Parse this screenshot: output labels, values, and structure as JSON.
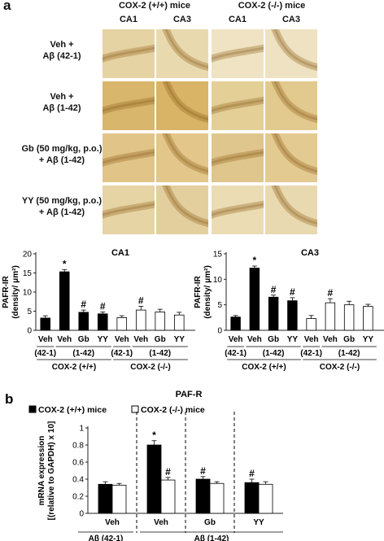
{
  "panel_a": {
    "letter": "a",
    "groups": [
      "COX-2 (+/+) mice",
      "COX-2 (-/-) mice"
    ],
    "regions": [
      "CA1",
      "CA3",
      "CA1",
      "CA3"
    ],
    "rows": [
      "Veh +\nAβ (42-1)",
      "Veh +\nAβ (1-42)",
      "Gb (50 mg/kg, p.o.)\n+ Aβ (1-42)",
      "YY (50 mg/kg, p.o.)\n+ Aβ (1-42)"
    ],
    "tile_colors": [
      [
        "#e6d3a3",
        "#e9d9ae",
        "#efe3c3",
        "#eee2c2"
      ],
      [
        "#d8b66c",
        "#d9b467",
        "#e4cf97",
        "#e2c98e"
      ],
      [
        "#e1c488",
        "#e2c68a",
        "#dfc68d",
        "#e3ca91"
      ],
      [
        "#e6d4a5",
        "#e3cf9e",
        "#ebdcb4",
        "#e9d9b0"
      ]
    ]
  },
  "chart_data": [
    {
      "type": "bar",
      "title": "CA1",
      "ylabel": "PAFR-IR\n(density/ μm²)",
      "ylim": [
        0,
        20
      ],
      "yticks": [
        0,
        5,
        10,
        15,
        20
      ],
      "categories": [
        "Veh",
        "Veh",
        "Gb",
        "YY",
        "Veh",
        "Veh",
        "Gb",
        "YY"
      ],
      "values": [
        3.2,
        15.3,
        4.7,
        4.3,
        3.3,
        5.3,
        4.8,
        4.0
      ],
      "errors": [
        0.6,
        0.6,
        0.6,
        0.5,
        0.5,
        1.0,
        0.7,
        0.7
      ],
      "filled": [
        true,
        true,
        true,
        true,
        false,
        false,
        false,
        false
      ],
      "marks": [
        "",
        "*",
        "#",
        "#",
        "",
        "#",
        "",
        ""
      ],
      "subgroups": [
        "(42-1)",
        "(1-42)",
        "(42-1)",
        "(1-42)"
      ],
      "groups": [
        "COX-2 (+/+)",
        "COX-2 (-/-)"
      ]
    },
    {
      "type": "bar",
      "title": "CA3",
      "ylabel": "PAFR-IR\n(density/ μm²)",
      "ylim": [
        0,
        15
      ],
      "yticks": [
        0,
        5,
        10,
        15
      ],
      "categories": [
        "Veh",
        "Veh",
        "Gb",
        "YY",
        "Veh",
        "Veh",
        "Gb",
        "YY"
      ],
      "values": [
        2.6,
        12.2,
        6.5,
        5.8,
        2.3,
        5.4,
        5.0,
        4.7
      ],
      "errors": [
        0.3,
        0.4,
        0.4,
        0.6,
        0.6,
        0.8,
        0.7,
        0.4
      ],
      "filled": [
        true,
        true,
        true,
        true,
        false,
        false,
        false,
        false
      ],
      "marks": [
        "",
        "*",
        "#",
        "#",
        "",
        "#",
        "",
        ""
      ],
      "subgroups": [
        "(42-1)",
        "(1-42)",
        "(42-1)",
        "(1-42)"
      ],
      "groups": [
        "COX-2 (+/+)",
        "COX-2 (-/-)"
      ]
    },
    {
      "type": "bar",
      "letter": "b",
      "title": "PAF-R",
      "ylabel": "mRNA expression\n[(relative to GAPDH) x 10]",
      "ylim": [
        0,
        1
      ],
      "yticks": [
        0,
        0.2,
        0.4,
        0.6,
        0.8,
        1
      ],
      "legend": [
        "COX-2 (+/+) mice",
        "COX-2 (-/-) mice"
      ],
      "categories": [
        "Veh",
        "Veh",
        "Gb",
        "YY"
      ],
      "series": [
        {
          "values": [
            0.34,
            0.8,
            0.4,
            0.36
          ],
          "errors": [
            0.03,
            0.05,
            0.03,
            0.04
          ],
          "marks": [
            "",
            "*",
            "#",
            "#"
          ]
        },
        {
          "values": [
            0.33,
            0.39,
            0.35,
            0.34
          ],
          "errors": [
            0.02,
            0.03,
            0.02,
            0.03
          ],
          "marks": [
            "",
            "#",
            "",
            ""
          ]
        }
      ],
      "subgroups": [
        "Aβ (42-1)",
        "Aβ (1-42)"
      ]
    }
  ]
}
